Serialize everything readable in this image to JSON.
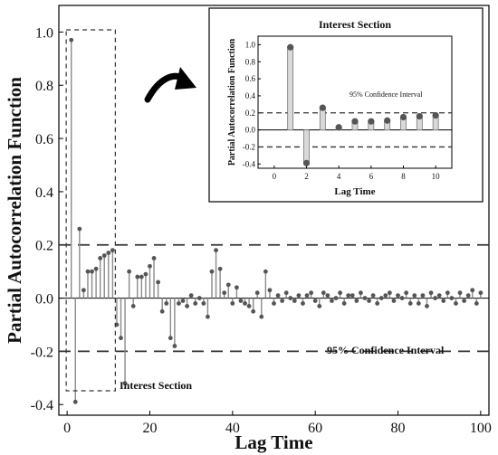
{
  "colors": {
    "stem": "#8a8a8a",
    "marker": "#555555",
    "axis": "#000000",
    "ci": "#333333",
    "bar_fill": "#d9d9d9"
  },
  "icons": {
    "arrow": "curved-arrow-icon"
  },
  "chart_data": [
    {
      "type": "stem",
      "xlabel": "Lag Time",
      "ylabel": "Partial Autocorrelation Function",
      "xlim": [
        -2,
        102
      ],
      "ylim": [
        -0.44,
        1.1
      ],
      "xticks": [
        0,
        20,
        40,
        60,
        80,
        100
      ],
      "yticks": [
        -0.4,
        -0.2,
        0.0,
        0.2,
        0.4,
        0.6,
        0.8,
        1.0
      ],
      "ytick_labels": [
        "-0.4",
        "-0.2",
        "0.0",
        "0.2",
        "0.4",
        "0.6",
        "0.8",
        "1.0"
      ],
      "ci": {
        "upper": 0.2,
        "lower": -0.2,
        "label": "95% Confidence Interval"
      },
      "highlight": {
        "x_from": 0,
        "x_to": 11,
        "label": "Interest Section"
      },
      "lags": [
        1,
        2,
        3,
        4,
        5,
        6,
        7,
        8,
        9,
        10,
        11,
        12,
        13,
        14,
        15,
        16,
        17,
        18,
        19,
        20,
        21,
        22,
        23,
        24,
        25,
        26,
        27,
        28,
        29,
        30,
        31,
        32,
        33,
        34,
        35,
        36,
        37,
        38,
        39,
        40,
        41,
        42,
        43,
        44,
        45,
        46,
        47,
        48,
        49,
        50,
        51,
        52,
        53,
        54,
        55,
        56,
        57,
        58,
        59,
        60,
        61,
        62,
        63,
        64,
        65,
        66,
        67,
        68,
        69,
        70,
        71,
        72,
        73,
        74,
        75,
        76,
        77,
        78,
        79,
        80,
        81,
        82,
        83,
        84,
        85,
        86,
        87,
        88,
        89,
        90,
        91,
        92,
        93,
        94,
        95,
        96,
        97,
        98,
        99,
        100
      ],
      "values": [
        0.97,
        -0.39,
        0.26,
        0.03,
        0.1,
        0.1,
        0.11,
        0.15,
        0.16,
        0.17,
        0.18,
        -0.1,
        -0.15,
        -0.32,
        0.1,
        -0.03,
        0.08,
        0.08,
        0.09,
        0.12,
        0.15,
        0.06,
        -0.05,
        -0.02,
        -0.15,
        -0.18,
        -0.02,
        -0.01,
        -0.03,
        0.01,
        -0.02,
        0.0,
        -0.02,
        -0.07,
        0.1,
        0.18,
        0.11,
        0.02,
        0.05,
        -0.02,
        0.04,
        -0.01,
        -0.02,
        -0.03,
        -0.05,
        0.02,
        -0.07,
        0.1,
        0.03,
        -0.02,
        0.01,
        -0.01,
        0.02,
        0.0,
        -0.01,
        0.01,
        -0.02,
        0.01,
        0.02,
        -0.01,
        -0.03,
        0.02,
        0.01,
        -0.01,
        0.0,
        0.02,
        -0.02,
        0.01,
        0.01,
        -0.01,
        0.02,
        0.0,
        -0.01,
        0.01,
        -0.02,
        0.0,
        0.01,
        0.02,
        -0.01,
        0.01,
        0.0,
        0.02,
        -0.02,
        0.01,
        -0.02,
        0.01,
        -0.03,
        0.02,
        0.0,
        0.01,
        -0.01,
        0.02,
        0.0,
        -0.02,
        0.02,
        -0.01,
        0.01,
        0.03,
        -0.02,
        0.02
      ]
    },
    {
      "type": "bar+stem",
      "title": "Interest Section",
      "xlabel": "Lag Time",
      "ylabel": "Partial Autocorrelation Function",
      "xlim": [
        -1,
        11
      ],
      "ylim": [
        -0.45,
        1.1
      ],
      "xticks": [
        0,
        2,
        4,
        6,
        8,
        10
      ],
      "yticks": [
        -0.4,
        -0.2,
        0.0,
        0.2,
        0.4,
        0.6,
        0.8,
        1.0
      ],
      "ytick_labels": [
        "-0.4",
        "-0.2",
        "0.0",
        "0.2",
        "0.4",
        "0.6",
        "0.8",
        "1.0"
      ],
      "ci": {
        "upper": 0.2,
        "lower": -0.2,
        "label": "95% Confidence Interval"
      },
      "lags": [
        1,
        2,
        3,
        4,
        5,
        6,
        7,
        8,
        9,
        10
      ],
      "values": [
        0.97,
        -0.39,
        0.26,
        0.03,
        0.1,
        0.1,
        0.11,
        0.15,
        0.16,
        0.17
      ]
    }
  ]
}
